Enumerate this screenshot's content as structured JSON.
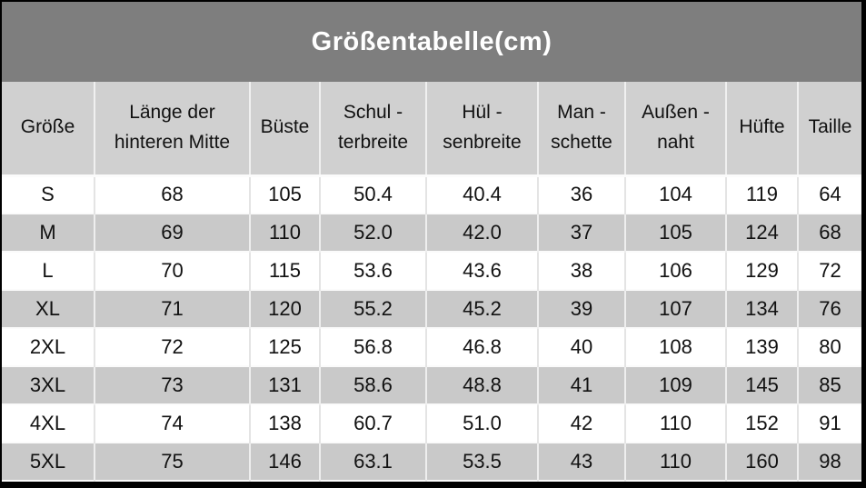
{
  "title_bar": {
    "title": "Größentabelle(cm)"
  },
  "colors": {
    "frame": "#000000",
    "title_bg": "#7e7e7e",
    "title_text": "#ffffff",
    "header_bg": "#d0d0d0",
    "row_bg": "#ffffff",
    "row_alt_bg": "#c9c9c9",
    "text": "#111111"
  },
  "size_table": {
    "headers": [
      "Größe",
      "Länge der\nhinteren Mitte",
      "Büste",
      "Schul -\nterbreite",
      "Hül -\nsenbreite",
      "Man -\nschette",
      "Außen -\nnaht",
      "Hüfte",
      "Taille"
    ],
    "rows": [
      [
        "S",
        "68",
        "105",
        "50.4",
        "40.4",
        "36",
        "104",
        "119",
        "64"
      ],
      [
        "M",
        "69",
        "110",
        "52.0",
        "42.0",
        "37",
        "105",
        "124",
        "68"
      ],
      [
        "L",
        "70",
        "115",
        "53.6",
        "43.6",
        "38",
        "106",
        "129",
        "72"
      ],
      [
        "XL",
        "71",
        "120",
        "55.2",
        "45.2",
        "39",
        "107",
        "134",
        "76"
      ],
      [
        "2XL",
        "72",
        "125",
        "56.8",
        "46.8",
        "40",
        "108",
        "139",
        "80"
      ],
      [
        "3XL",
        "73",
        "131",
        "58.6",
        "48.8",
        "41",
        "109",
        "145",
        "85"
      ],
      [
        "4XL",
        "74",
        "138",
        "60.7",
        "51.0",
        "42",
        "110",
        "152",
        "91"
      ],
      [
        "5XL",
        "75",
        "146",
        "63.1",
        "53.5",
        "43",
        "110",
        "160",
        "98"
      ]
    ]
  }
}
